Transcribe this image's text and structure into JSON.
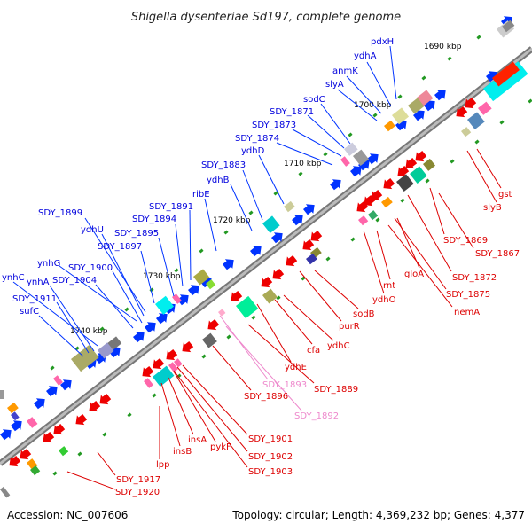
{
  "title": "Shigella dysenteriae Sd197, complete genome",
  "footer": {
    "accession": "Accession: NC_007606",
    "summary": "Topology: circular; Length: 4,369,232 bp; Genes: 4,377"
  },
  "colors": {
    "forward_label": "#0000dd",
    "reverse_label": "#dd0000",
    "pseudo_label": "#ee88cc",
    "backbone": "#999999",
    "tick": "#229922"
  },
  "kbp_labels": [
    "1690 kbp",
    "1700 kbp",
    "1710 kbp",
    "1720 kbp",
    "1730 kbp",
    "1740 kbp"
  ],
  "forward_labels": [
    "pdxH",
    "ydhA",
    "anmK",
    "slyA",
    "sodC",
    "SDY_1871",
    "SDY_1873",
    "SDY_1874",
    "ydhD",
    "SDY_1883",
    "ydhB",
    "ribE",
    "SDY_1891",
    "SDY_1894",
    "SDY_1895",
    "SDY_1897",
    "SDY_1899",
    "ydhU",
    "ynhG",
    "SDY_1900",
    "ynhC",
    "ynhA",
    "SDY_1904",
    "SDY_1911",
    "sufC"
  ],
  "reverse_labels": [
    "gst",
    "slyB",
    "SDY_1867",
    "SDY_1869",
    "SDY_1872",
    "SDY_1875",
    "gloA",
    "nemA",
    "rnt",
    "ydhO",
    "sodB",
    "purR",
    "ydhC",
    "cfa",
    "ydhE",
    "SDY_1889",
    "SDY_1896",
    "SDY_1901",
    "SDY_1902",
    "SDY_1903",
    "pykF",
    "insA",
    "insB",
    "lpp",
    "SDY_1917",
    "SDY_1920"
  ],
  "pseudo_labels": [
    "SDY_1893",
    "SDY_1892"
  ]
}
